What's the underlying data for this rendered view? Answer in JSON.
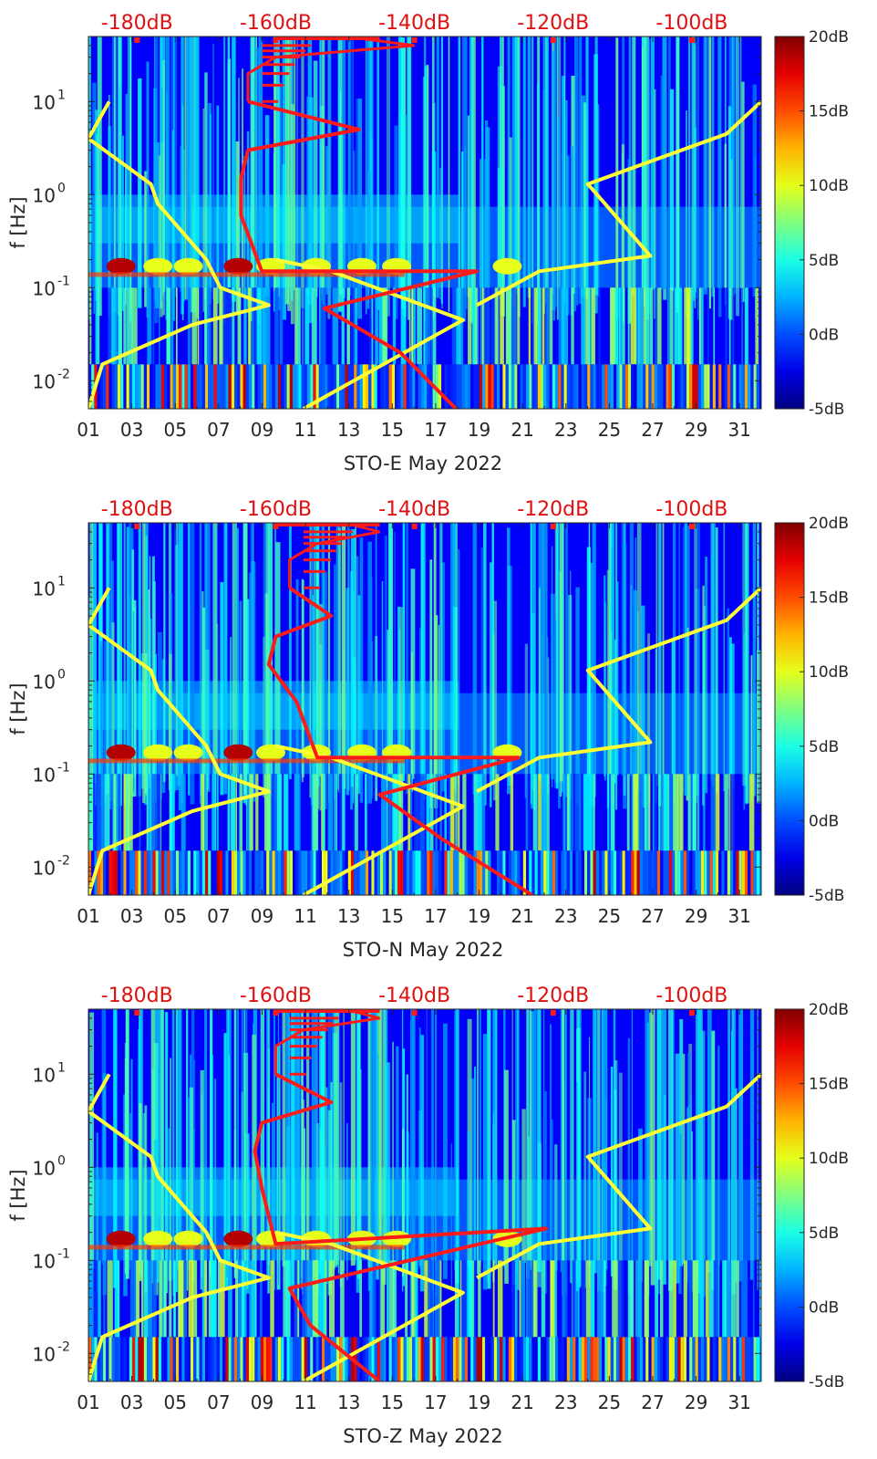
{
  "chart_data": [
    {
      "type": "heatmap",
      "xlabel": "STO-E May 2022",
      "ylabel": "f [Hz]",
      "x_ticks": [
        "01",
        "03",
        "05",
        "07",
        "09",
        "11",
        "13",
        "15",
        "17",
        "19",
        "21",
        "23",
        "25",
        "27",
        "29",
        "31"
      ],
      "y_ticks": [
        "10^-2",
        "10^-1",
        "10^0",
        "10^1"
      ],
      "top_axis_ticks": [
        "-180dB",
        "-160dB",
        "-140dB",
        "-120dB",
        "-100dB"
      ],
      "top_axis_range_dB": [
        -187,
        -90
      ],
      "colorbar": {
        "labels": [
          "20dB",
          "15dB",
          "10dB",
          "5dB",
          "0dB",
          "-5dB"
        ],
        "range_dB": [
          -5,
          20
        ],
        "colormap": "jet"
      },
      "xlim_day": [
        1,
        32
      ],
      "ylim_hz": [
        0.005,
        50
      ],
      "series": [
        {
          "color": "#ffff33",
          "style": "noise model lines",
          "x_dB": [
            -187,
            -185,
            -172,
            -161,
            -168,
            -170,
            -177,
            -178,
            -187,
            -184
          ],
          "f_hz": [
            0.005,
            0.015,
            0.04,
            0.065,
            0.1,
            0.2,
            0.8,
            1.3,
            4,
            10
          ]
        },
        {
          "color": "#ffff33",
          "style": "noise model lines",
          "x_dB": [
            -156,
            -133,
            -152,
            -160
          ],
          "f_hz": [
            0.005,
            0.045,
            0.15,
            0.2
          ]
        },
        {
          "color": "#ffff33",
          "style": "noise model lines",
          "x_dB": [
            -131,
            -122,
            -106,
            -115,
            -95,
            -90
          ],
          "f_hz": [
            0.065,
            0.15,
            0.22,
            1.3,
            4.5,
            10
          ]
        },
        {
          "color": "#ff1a1a",
          "style": "median PSD",
          "x_dB": [
            -134,
            -142,
            -153,
            -131,
            -162,
            -165,
            -165,
            -164,
            -148,
            -164,
            -164,
            -160,
            -140,
            -150
          ],
          "f_hz": [
            0.005,
            0.02,
            0.06,
            0.15,
            0.15,
            0.6,
            1.5,
            3,
            5,
            10,
            20,
            30,
            40,
            50
          ]
        }
      ]
    },
    {
      "type": "heatmap",
      "xlabel": "STO-N May 2022",
      "ylabel": "f [Hz]",
      "x_ticks": [
        "01",
        "03",
        "05",
        "07",
        "09",
        "11",
        "13",
        "15",
        "17",
        "19",
        "21",
        "23",
        "25",
        "27",
        "29",
        "31"
      ],
      "y_ticks": [
        "10^-2",
        "10^-1",
        "10^0",
        "10^1"
      ],
      "top_axis_ticks": [
        "-180dB",
        "-160dB",
        "-140dB",
        "-120dB",
        "-100dB"
      ],
      "top_axis_range_dB": [
        -187,
        -90
      ],
      "colorbar": {
        "labels": [
          "20dB",
          "15dB",
          "10dB",
          "5dB",
          "0dB",
          "-5dB"
        ],
        "range_dB": [
          -5,
          20
        ],
        "colormap": "jet"
      },
      "xlim_day": [
        1,
        32
      ],
      "ylim_hz": [
        0.005,
        50
      ],
      "series": [
        {
          "color": "#ffff33",
          "style": "noise model lines",
          "x_dB": [
            -187,
            -185,
            -172,
            -161,
            -168,
            -170,
            -177,
            -178,
            -187,
            -184
          ],
          "f_hz": [
            0.005,
            0.015,
            0.04,
            0.065,
            0.1,
            0.2,
            0.8,
            1.3,
            4,
            10
          ]
        },
        {
          "color": "#ffff33",
          "style": "noise model lines",
          "x_dB": [
            -156,
            -133,
            -152,
            -160
          ],
          "f_hz": [
            0.005,
            0.045,
            0.15,
            0.2
          ]
        },
        {
          "color": "#ffff33",
          "style": "noise model lines",
          "x_dB": [
            -131,
            -122,
            -106,
            -115,
            -95,
            -90
          ],
          "f_hz": [
            0.065,
            0.15,
            0.22,
            1.3,
            4.5,
            10
          ]
        },
        {
          "color": "#ff1a1a",
          "style": "median PSD",
          "x_dB": [
            -123,
            -136,
            -145,
            -125,
            -154,
            -157,
            -161,
            -160,
            -152,
            -158,
            -158,
            -154,
            -145,
            -150
          ],
          "f_hz": [
            0.005,
            0.02,
            0.06,
            0.15,
            0.15,
            0.6,
            1.5,
            3,
            5,
            10,
            20,
            30,
            40,
            50
          ]
        }
      ]
    },
    {
      "type": "heatmap",
      "xlabel": "STO-Z May 2022",
      "ylabel": "f [Hz]",
      "x_ticks": [
        "01",
        "03",
        "05",
        "07",
        "09",
        "11",
        "13",
        "15",
        "17",
        "19",
        "21",
        "23",
        "25",
        "27",
        "29",
        "31"
      ],
      "y_ticks": [
        "10^-2",
        "10^-1",
        "10^0",
        "10^1"
      ],
      "top_axis_ticks": [
        "-180dB",
        "-160dB",
        "-140dB",
        "-120dB",
        "-100dB"
      ],
      "top_axis_range_dB": [
        -187,
        -90
      ],
      "colorbar": {
        "labels": [
          "20dB",
          "15dB",
          "10dB",
          "5dB",
          "0dB",
          "-5dB"
        ],
        "range_dB": [
          -5,
          20
        ],
        "colormap": "jet"
      },
      "xlim_day": [
        1,
        32
      ],
      "ylim_hz": [
        0.005,
        50
      ],
      "series": [
        {
          "color": "#ffff33",
          "style": "noise model lines",
          "x_dB": [
            -187,
            -185,
            -172,
            -161,
            -168,
            -170,
            -177,
            -178,
            -187,
            -184
          ],
          "f_hz": [
            0.005,
            0.015,
            0.04,
            0.065,
            0.1,
            0.2,
            0.8,
            1.3,
            4,
            10
          ]
        },
        {
          "color": "#ffff33",
          "style": "noise model lines",
          "x_dB": [
            -156,
            -133,
            -152,
            -160
          ],
          "f_hz": [
            0.005,
            0.045,
            0.15,
            0.2
          ]
        },
        {
          "color": "#ffff33",
          "style": "noise model lines",
          "x_dB": [
            -131,
            -122,
            -106,
            -115,
            -95,
            -90
          ],
          "f_hz": [
            0.065,
            0.15,
            0.22,
            1.3,
            4.5,
            10
          ]
        },
        {
          "color": "#ff1a1a",
          "style": "median PSD",
          "x_dB": [
            -145,
            -155,
            -158,
            -121,
            -160,
            -162,
            -163,
            -162,
            -152,
            -160,
            -160,
            -156,
            -145,
            -150
          ],
          "f_hz": [
            0.005,
            0.02,
            0.05,
            0.22,
            0.15,
            0.6,
            1.5,
            3,
            5,
            10,
            20,
            30,
            40,
            50
          ]
        }
      ]
    }
  ]
}
